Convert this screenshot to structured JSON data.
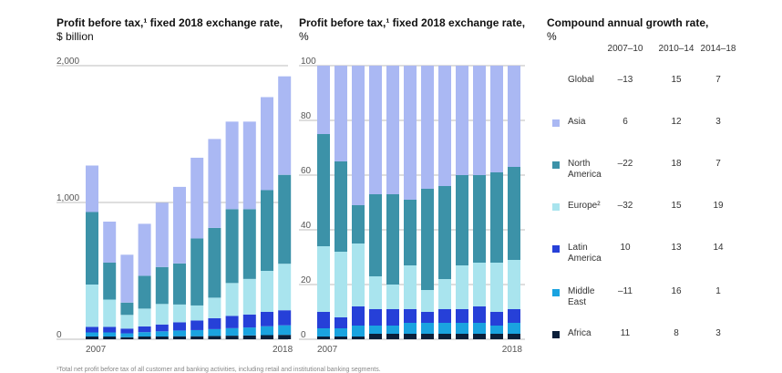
{
  "colors": {
    "Africa": "#0b1f3a",
    "Middle East": "#1aa3e0",
    "Latin America": "#2640d8",
    "Europe": "#a9e4ee",
    "North America": "#3c92a8",
    "Asia": "#aab8f3"
  },
  "chart_data": [
    {
      "type": "bar",
      "stacked": true,
      "title": "Profit before tax,¹ fixed 2018 exchange rate,",
      "subtitle": "$ billion",
      "x_labels": [
        "2007",
        "2018"
      ],
      "categories": [
        "2007",
        "2008",
        "2009",
        "2010",
        "2011",
        "2012",
        "2013",
        "2014",
        "2015",
        "2016",
        "2017",
        "2018"
      ],
      "ylim": [
        0,
        2000
      ],
      "y_ticks": [
        "0",
        "1,000",
        "2,000"
      ],
      "series": [
        {
          "name": "Africa",
          "values": [
            20,
            20,
            15,
            20,
            20,
            22,
            22,
            24,
            26,
            28,
            30,
            32
          ]
        },
        {
          "name": "Middle East",
          "values": [
            30,
            30,
            28,
            32,
            38,
            42,
            45,
            50,
            55,
            58,
            65,
            70
          ]
        },
        {
          "name": "Latin America",
          "values": [
            40,
            40,
            35,
            42,
            50,
            60,
            70,
            80,
            90,
            95,
            105,
            110
          ]
        },
        {
          "name": "Europe",
          "values": [
            310,
            200,
            100,
            130,
            150,
            130,
            110,
            150,
            240,
            260,
            300,
            340
          ]
        },
        {
          "name": "North America",
          "values": [
            530,
            270,
            90,
            240,
            270,
            300,
            490,
            510,
            540,
            510,
            590,
            650
          ]
        },
        {
          "name": "Asia",
          "values": [
            340,
            300,
            350,
            380,
            470,
            560,
            590,
            650,
            640,
            640,
            680,
            720
          ]
        }
      ]
    },
    {
      "type": "bar",
      "stacked": true,
      "title": "Profit before tax,¹ fixed 2018 exchange rate,",
      "subtitle": "%",
      "x_labels": [
        "2007",
        "2018"
      ],
      "categories": [
        "2007",
        "2008",
        "2009",
        "2010",
        "2011",
        "2012",
        "2013",
        "2014",
        "2015",
        "2016",
        "2017",
        "2018"
      ],
      "ylim": [
        0,
        100
      ],
      "y_ticks": [
        "0",
        "20",
        "40",
        "60",
        "80",
        "100"
      ],
      "series": [
        {
          "name": "Africa",
          "values": [
            1,
            1,
            1,
            2,
            2,
            2,
            2,
            2,
            2,
            2,
            2,
            2
          ]
        },
        {
          "name": "Middle East",
          "values": [
            3,
            3,
            4,
            3,
            3,
            4,
            4,
            4,
            4,
            4,
            3,
            4
          ]
        },
        {
          "name": "Latin America",
          "values": [
            6,
            4,
            7,
            6,
            6,
            5,
            4,
            5,
            5,
            6,
            5,
            5
          ]
        },
        {
          "name": "Europe",
          "values": [
            24,
            24,
            23,
            12,
            9,
            16,
            8,
            11,
            16,
            16,
            18,
            18
          ]
        },
        {
          "name": "North America",
          "values": [
            41,
            33,
            14,
            30,
            33,
            24,
            37,
            34,
            33,
            32,
            33,
            34
          ]
        },
        {
          "name": "Asia",
          "values": [
            25,
            35,
            51,
            47,
            47,
            49,
            45,
            44,
            40,
            40,
            39,
            37
          ]
        }
      ]
    },
    {
      "type": "table",
      "title": "Compound annual growth rate,",
      "subtitle": "%",
      "columns": [
        "2007–10",
        "2010–14",
        "2014–18"
      ],
      "rows": [
        {
          "label": "Global",
          "values": [
            "–13",
            "15",
            "7"
          ]
        },
        {
          "label": "Asia",
          "values": [
            "6",
            "12",
            "3"
          ]
        },
        {
          "label": "North America",
          "line1": "North",
          "line2": "America",
          "values": [
            "–22",
            "18",
            "7"
          ]
        },
        {
          "label": "Europe",
          "line1": "Europe²",
          "values": [
            "–32",
            "15",
            "19"
          ]
        },
        {
          "label": "Latin America",
          "line1": "Latin",
          "line2": "America",
          "values": [
            "10",
            "13",
            "14"
          ]
        },
        {
          "label": "Middle East",
          "line1": "Middle",
          "line2": "East",
          "values": [
            "–11",
            "16",
            "1"
          ]
        },
        {
          "label": "Africa",
          "values": [
            "11",
            "8",
            "3"
          ]
        }
      ]
    }
  ],
  "footnote": "¹Total net profit before tax of all customer and banking activities, including retail and institutional banking segments."
}
